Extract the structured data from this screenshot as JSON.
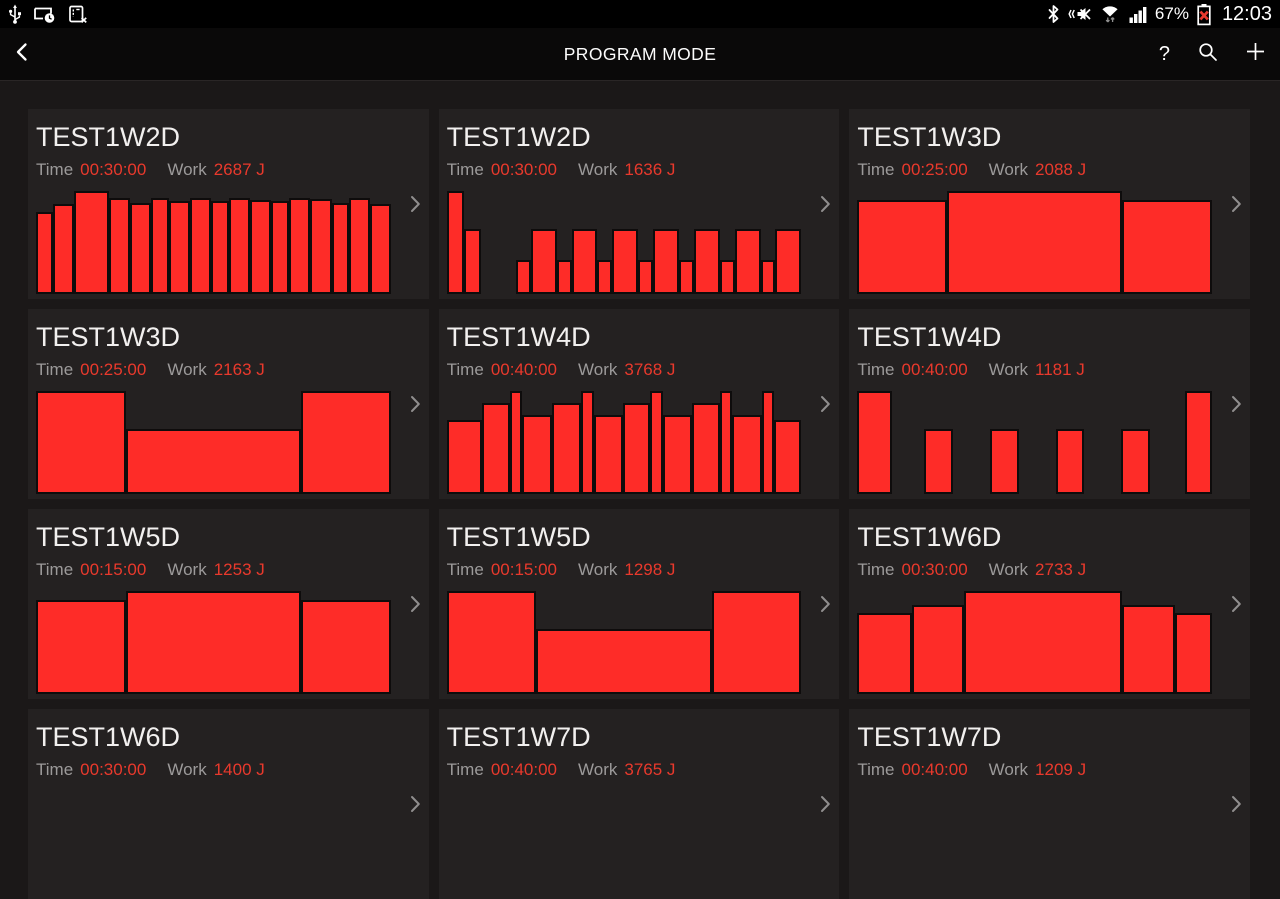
{
  "status_bar": {
    "time": "12:03",
    "battery_percent": "67%",
    "icons_left": [
      "usb-icon",
      "screen-timeout-clock-icon",
      "sim-removed-icon"
    ],
    "icons_right": [
      "bluetooth-icon",
      "mute-vibrate-icon",
      "wifi-arrows-icon",
      "signal-bars-icon",
      "battery-error-icon"
    ]
  },
  "header": {
    "title": "PROGRAM MODE",
    "back_icon": "chevron-left",
    "help_label": "?",
    "actions": [
      "help",
      "search",
      "add"
    ]
  },
  "meta_labels": {
    "time": "Time",
    "work": "Work"
  },
  "colors": {
    "page_bg": "#1b1818",
    "card_bg": "#242121",
    "bar_fill": "#fe2c28",
    "bar_border": "#0e0c0c",
    "value_text": "#e9392c",
    "label_text": "#9c9a9a",
    "title_text": "#f2f0ef"
  },
  "cards": [
    {
      "title": "TEST1W2D",
      "time": "00:30:00",
      "work": "2687 J",
      "bars": [
        [
          80,
          0.75
        ],
        [
          87,
          1
        ],
        [
          100,
          1.8
        ],
        [
          93,
          1
        ],
        [
          88,
          1
        ],
        [
          93,
          0.8
        ],
        [
          90,
          1
        ],
        [
          93,
          1
        ],
        [
          90,
          0.8
        ],
        [
          93,
          1
        ],
        [
          91,
          1
        ],
        [
          90,
          0.8
        ],
        [
          93,
          1
        ],
        [
          92,
          1
        ],
        [
          88,
          0.8
        ],
        [
          93,
          1
        ],
        [
          87,
          0.95
        ]
      ]
    },
    {
      "title": "TEST1W2D",
      "time": "00:30:00",
      "work": "1636 J",
      "bars": [
        [
          100,
          1.2
        ],
        [
          63,
          1.2
        ],
        [
          0,
          3.2
        ],
        [
          33,
          1
        ],
        [
          63,
          2
        ],
        [
          33,
          1
        ],
        [
          63,
          2
        ],
        [
          33,
          1
        ],
        [
          63,
          2
        ],
        [
          33,
          1
        ],
        [
          63,
          2
        ],
        [
          33,
          1
        ],
        [
          63,
          2
        ],
        [
          33,
          1
        ],
        [
          63,
          2
        ],
        [
          33,
          1
        ],
        [
          63,
          2
        ]
      ]
    },
    {
      "title": "TEST1W3D",
      "time": "00:25:00",
      "work": "2088 J",
      "bars": [
        [
          91,
          25
        ],
        [
          100,
          50
        ],
        [
          91,
          25
        ]
      ]
    },
    {
      "title": "TEST1W3D",
      "time": "00:25:00",
      "work": "2163 J",
      "bars": [
        [
          100,
          25
        ],
        [
          63,
          50
        ],
        [
          100,
          25
        ]
      ]
    },
    {
      "title": "TEST1W4D",
      "time": "00:40:00",
      "work": "3768 J",
      "bars": [
        [
          72,
          3
        ],
        [
          88,
          2.2
        ],
        [
          100,
          0.8
        ],
        [
          77,
          2.4
        ],
        [
          88,
          2.4
        ],
        [
          100,
          0.8
        ],
        [
          77,
          2.4
        ],
        [
          88,
          2.2
        ],
        [
          100,
          0.8
        ],
        [
          77,
          2.4
        ],
        [
          88,
          2.2
        ],
        [
          100,
          0.8
        ],
        [
          77,
          2.4
        ],
        [
          100,
          0.8
        ],
        [
          72,
          2.2
        ]
      ]
    },
    {
      "title": "TEST1W4D",
      "time": "00:40:00",
      "work": "1181 J",
      "bars": [
        [
          100,
          1.25
        ],
        [
          0,
          1.3
        ],
        [
          63,
          1
        ],
        [
          0,
          1.5
        ],
        [
          63,
          1
        ],
        [
          0,
          1.5
        ],
        [
          63,
          1
        ],
        [
          0,
          1.5
        ],
        [
          63,
          1
        ],
        [
          0,
          1.4
        ],
        [
          100,
          0.95
        ]
      ]
    },
    {
      "title": "TEST1W5D",
      "time": "00:15:00",
      "work": "1253 J",
      "bars": [
        [
          91,
          25
        ],
        [
          100,
          50
        ],
        [
          91,
          25
        ]
      ]
    },
    {
      "title": "TEST1W5D",
      "time": "00:15:00",
      "work": "1298 J",
      "bars": [
        [
          100,
          25
        ],
        [
          63,
          50
        ],
        [
          100,
          25
        ]
      ]
    },
    {
      "title": "TEST1W6D",
      "time": "00:30:00",
      "work": "2733 J",
      "bars": [
        [
          79,
          15
        ],
        [
          86,
          14.5
        ],
        [
          100,
          46
        ],
        [
          86,
          14.5
        ],
        [
          79,
          10
        ]
      ]
    },
    {
      "title": "TEST1W6D",
      "time": "00:30:00",
      "work": "1400 J",
      "bars": []
    },
    {
      "title": "TEST1W7D",
      "time": "00:40:00",
      "work": "3765 J",
      "bars": []
    },
    {
      "title": "TEST1W7D",
      "time": "00:40:00",
      "work": "1209 J",
      "bars": []
    }
  ]
}
